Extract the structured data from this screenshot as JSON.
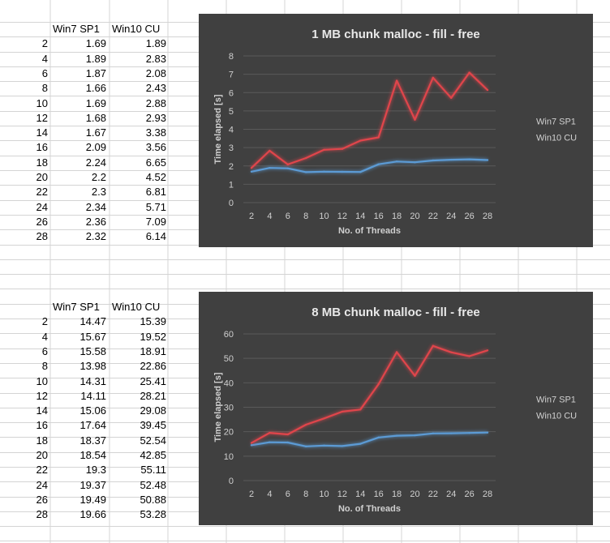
{
  "table1": {
    "headers": [
      "Win7 SP1",
      "Win10 CU"
    ],
    "rows": [
      [
        "2",
        "1.69",
        "1.89"
      ],
      [
        "4",
        "1.89",
        "2.83"
      ],
      [
        "6",
        "1.87",
        "2.08"
      ],
      [
        "8",
        "1.66",
        "2.43"
      ],
      [
        "10",
        "1.69",
        "2.88"
      ],
      [
        "12",
        "1.68",
        "2.93"
      ],
      [
        "14",
        "1.67",
        "3.38"
      ],
      [
        "16",
        "2.09",
        "3.56"
      ],
      [
        "18",
        "2.24",
        "6.65"
      ],
      [
        "20",
        "2.2",
        "4.52"
      ],
      [
        "22",
        "2.3",
        "6.81"
      ],
      [
        "24",
        "2.34",
        "5.71"
      ],
      [
        "26",
        "2.36",
        "7.09"
      ],
      [
        "28",
        "2.32",
        "6.14"
      ]
    ]
  },
  "table2": {
    "headers": [
      "Win7 SP1",
      "Win10 CU"
    ],
    "rows": [
      [
        "2",
        "14.47",
        "15.39"
      ],
      [
        "4",
        "15.67",
        "19.52"
      ],
      [
        "6",
        "15.58",
        "18.91"
      ],
      [
        "8",
        "13.98",
        "22.86"
      ],
      [
        "10",
        "14.31",
        "25.41"
      ],
      [
        "12",
        "14.11",
        "28.21"
      ],
      [
        "14",
        "15.06",
        "29.08"
      ],
      [
        "16",
        "17.64",
        "39.45"
      ],
      [
        "18",
        "18.37",
        "52.54"
      ],
      [
        "20",
        "18.54",
        "42.85"
      ],
      [
        "22",
        "19.3",
        "55.11"
      ],
      [
        "24",
        "19.37",
        "52.48"
      ],
      [
        "26",
        "19.49",
        "50.88"
      ],
      [
        "28",
        "19.66",
        "53.28"
      ]
    ]
  },
  "chart_data": [
    {
      "type": "line",
      "title": "1 MB chunk malloc - fill - free",
      "xlabel": "No. of Threads",
      "ylabel": "Time elapsed [s]",
      "x": [
        2,
        4,
        6,
        8,
        10,
        12,
        14,
        16,
        18,
        20,
        22,
        24,
        26,
        28
      ],
      "yticks": [
        0,
        1,
        2,
        3,
        4,
        5,
        6,
        7,
        8
      ],
      "ylim": [
        0,
        8
      ],
      "legend_position": "right",
      "grid": true,
      "series": [
        {
          "name": "Win7 SP1",
          "color": "#5b9bd5",
          "values": [
            1.69,
            1.89,
            1.87,
            1.66,
            1.69,
            1.68,
            1.67,
            2.09,
            2.24,
            2.2,
            2.3,
            2.34,
            2.36,
            2.32
          ]
        },
        {
          "name": "Win10 CU",
          "color": "#e0454b",
          "values": [
            1.89,
            2.83,
            2.08,
            2.43,
            2.88,
            2.93,
            3.38,
            3.56,
            6.65,
            4.52,
            6.81,
            5.71,
            7.09,
            6.14
          ]
        }
      ]
    },
    {
      "type": "line",
      "title": "8 MB chunk malloc - fill - free",
      "xlabel": "No. of Threads",
      "ylabel": "Time elapsed [s]",
      "x": [
        2,
        4,
        6,
        8,
        10,
        12,
        14,
        16,
        18,
        20,
        22,
        24,
        26,
        28
      ],
      "yticks": [
        0,
        10,
        20,
        30,
        40,
        50,
        60
      ],
      "ylim": [
        0,
        60
      ],
      "legend_position": "right",
      "grid": true,
      "series": [
        {
          "name": "Win7 SP1",
          "color": "#5b9bd5",
          "values": [
            14.47,
            15.67,
            15.58,
            13.98,
            14.31,
            14.11,
            15.06,
            17.64,
            18.37,
            18.54,
            19.3,
            19.37,
            19.49,
            19.66
          ]
        },
        {
          "name": "Win10 CU",
          "color": "#e0454b",
          "values": [
            15.39,
            19.52,
            18.91,
            22.86,
            25.41,
            28.21,
            29.08,
            39.45,
            52.54,
            42.85,
            55.11,
            52.48,
            50.88,
            53.28
          ]
        }
      ]
    }
  ]
}
